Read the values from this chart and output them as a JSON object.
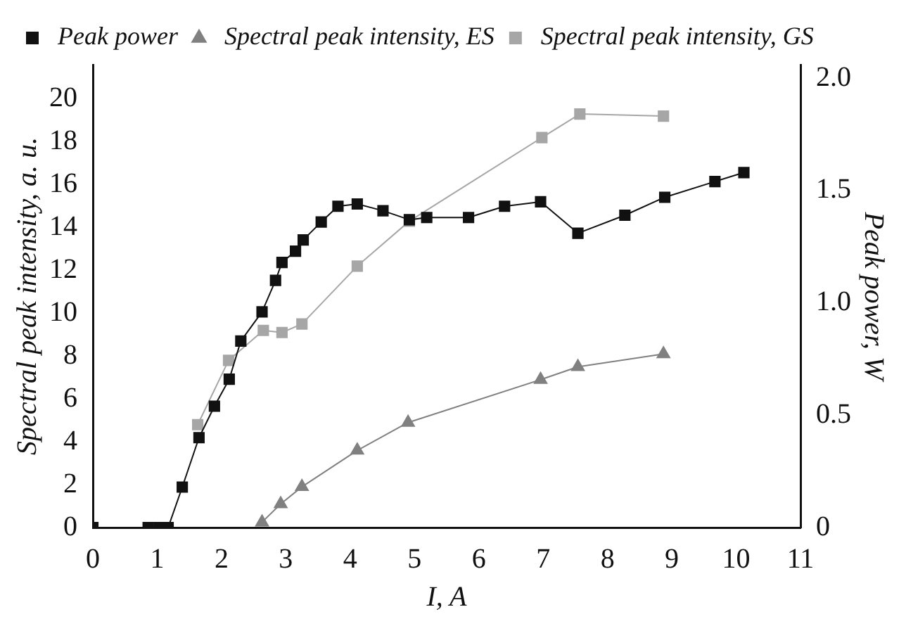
{
  "chart_data": {
    "type": "line",
    "xlabel": "I, A",
    "ylabel": "Spectral peak intensity, a. u.",
    "y2label": "Peak power, W",
    "xlim": [
      0,
      11
    ],
    "xticks": [
      0,
      1,
      2,
      3,
      4,
      5,
      6,
      7,
      8,
      9,
      10,
      11
    ],
    "ylim": [
      0,
      21.6
    ],
    "yticks": [
      0,
      2,
      4,
      6,
      8,
      10,
      12,
      14,
      16,
      18,
      20
    ],
    "y2lim": [
      0,
      2.06
    ],
    "y2ticks": [
      {
        "value": 0,
        "label": "0"
      },
      {
        "value": 0.5,
        "label": "0.5"
      },
      {
        "value": 1,
        "label": "1.0"
      },
      {
        "value": 1.5,
        "label": "1.5"
      },
      {
        "value": 2,
        "label": "2.0"
      }
    ],
    "legend": "top left",
    "grid": false,
    "series": [
      {
        "name": "Spectral peak intensity, GS",
        "color": "#a6a6a6",
        "marker": "square",
        "x": [
          1.63,
          2.11,
          2.65,
          2.94,
          3.25,
          4.11,
          4.92,
          6.98,
          7.57,
          8.87
        ],
        "values": [
          4.8,
          7.8,
          9.2,
          9.1,
          9.5,
          12.2,
          14.3,
          18.2,
          19.3,
          19.2
        ]
      },
      {
        "name": "Spectral peak intensity, ES",
        "color": "#808080",
        "marker": "triangle",
        "x": [
          2.63,
          2.92,
          3.25,
          4.11,
          4.9,
          6.96,
          7.54,
          8.87
        ],
        "values": [
          0.25,
          1.1,
          1.9,
          3.6,
          4.9,
          6.9,
          7.5,
          8.1
        ]
      },
      {
        "name": "Peak power",
        "color": "#111111",
        "marker": "square",
        "axis": "y2",
        "x": [
          0,
          0.86,
          1.03,
          1.17,
          1.39,
          1.65,
          1.89,
          2.12,
          2.3,
          2.63,
          2.84,
          2.94,
          3.15,
          3.27,
          3.55,
          3.81,
          4.11,
          4.51,
          4.92,
          5.19,
          5.84,
          6.4,
          6.96,
          7.54,
          8.27,
          8.89,
          9.67,
          10.12
        ],
        "values": [
          0,
          0,
          0,
          0,
          0.18,
          0.4,
          0.54,
          0.66,
          0.83,
          0.96,
          1.1,
          1.18,
          1.23,
          1.28,
          1.36,
          1.43,
          1.44,
          1.41,
          1.37,
          1.38,
          1.38,
          1.43,
          1.45,
          1.31,
          1.39,
          1.47,
          1.54,
          1.58
        ]
      }
    ]
  }
}
